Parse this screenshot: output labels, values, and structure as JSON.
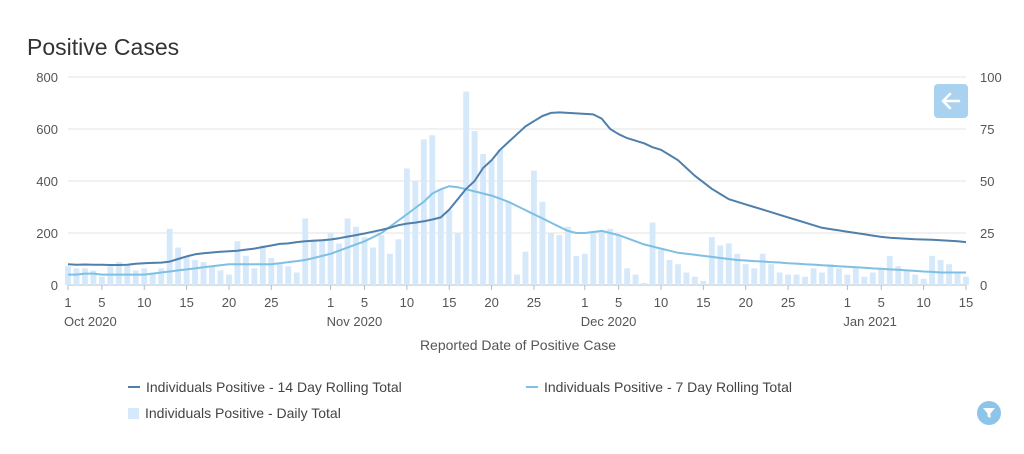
{
  "colors": {
    "rolling14": "#4f7fab",
    "rolling7": "#7ec0e4",
    "daily": "#d5e9fa",
    "grid": "#e3e3e3"
  },
  "icons": {
    "back": "left-arrow-icon",
    "filter": "filter-icon"
  },
  "chart_data": {
    "type": "bar+line",
    "title": "Positive Cases",
    "xlabel": "Reported Date of Positive Case",
    "x_start": "2020-10-01",
    "x_end": "2021-01-16",
    "ylim_left": [
      0,
      800
    ],
    "ylim_right": [
      0,
      100
    ],
    "left_ticks": [
      "0",
      "200",
      "400",
      "600",
      "800"
    ],
    "right_ticks": [
      "0",
      "25",
      "50",
      "75",
      "100"
    ],
    "x_ticks": [
      {
        "day": 0,
        "label": "1"
      },
      {
        "day": 4,
        "label": "5"
      },
      {
        "day": 9,
        "label": "10"
      },
      {
        "day": 14,
        "label": "15"
      },
      {
        "day": 19,
        "label": "20"
      },
      {
        "day": 24,
        "label": "25"
      },
      {
        "day": 31,
        "label": "1"
      },
      {
        "day": 35,
        "label": "5"
      },
      {
        "day": 40,
        "label": "10"
      },
      {
        "day": 45,
        "label": "15"
      },
      {
        "day": 50,
        "label": "20"
      },
      {
        "day": 55,
        "label": "25"
      },
      {
        "day": 61,
        "label": "1"
      },
      {
        "day": 65,
        "label": "5"
      },
      {
        "day": 70,
        "label": "10"
      },
      {
        "day": 75,
        "label": "15"
      },
      {
        "day": 80,
        "label": "20"
      },
      {
        "day": 85,
        "label": "25"
      },
      {
        "day": 92,
        "label": "1"
      },
      {
        "day": 96,
        "label": "5"
      },
      {
        "day": 101,
        "label": "10"
      },
      {
        "day": 106,
        "label": "15"
      }
    ],
    "month_labels": [
      {
        "day": 0,
        "label": "Oct 2020"
      },
      {
        "day": 31,
        "label": "Nov 2020"
      },
      {
        "day": 61,
        "label": "Dec 2020"
      },
      {
        "day": 92,
        "label": "Jan 2021"
      }
    ],
    "series": [
      {
        "name": "Individuals Positive - 14 Day Rolling Total",
        "type": "line",
        "axis": "left",
        "values": [
          80,
          78,
          79,
          78,
          78,
          77,
          77,
          78,
          82,
          84,
          85,
          86,
          90,
          100,
          110,
          118,
          122,
          125,
          128,
          130,
          132,
          136,
          140,
          146,
          152,
          158,
          160,
          165,
          168,
          170,
          172,
          175,
          180,
          186,
          192,
          198,
          205,
          212,
          220,
          230,
          236,
          240,
          245,
          252,
          260,
          290,
          330,
          370,
          400,
          450,
          480,
          520,
          550,
          580,
          610,
          630,
          650,
          662,
          664,
          662,
          660,
          658,
          656,
          640,
          600,
          580,
          565,
          555,
          545,
          530,
          520,
          500,
          480,
          450,
          420,
          395,
          370,
          350,
          330,
          320,
          310,
          300,
          290,
          280,
          270,
          260,
          250,
          240,
          230,
          220,
          215,
          210,
          205,
          200,
          195,
          190,
          185,
          182,
          180,
          178,
          176,
          175,
          174,
          172,
          170,
          168,
          165
        ]
      },
      {
        "name": "Individuals Positive - 7 Day Rolling Total",
        "type": "line",
        "axis": "right",
        "values": [
          5,
          5,
          5.5,
          5.5,
          5,
          5,
          5,
          5,
          5,
          5,
          5.5,
          6,
          6.5,
          7,
          7.5,
          8,
          8.5,
          9,
          9.5,
          10,
          10,
          10,
          10,
          10,
          10,
          10.5,
          11,
          11.5,
          12,
          13,
          14,
          15,
          16.5,
          18,
          19.5,
          21,
          23,
          25,
          28,
          31,
          34,
          37,
          40,
          44,
          46,
          47.5,
          47,
          46,
          45,
          44,
          43,
          41.5,
          40,
          38,
          36,
          34,
          32,
          30,
          28,
          26,
          25,
          25,
          25.5,
          26,
          25,
          24,
          22.5,
          21,
          19.5,
          18.5,
          17.5,
          16.5,
          15.5,
          15,
          14.5,
          14,
          13.5,
          13,
          12.5,
          12,
          11.8,
          11.5,
          11.3,
          11,
          10.8,
          10.5,
          10.3,
          10,
          9.8,
          9.5,
          9.3,
          9,
          8.8,
          8.5,
          8.3,
          8,
          7.8,
          7.5,
          7.3,
          7,
          6.8,
          6.5,
          6.3,
          6,
          6,
          6,
          6
        ]
      },
      {
        "name": "Individuals Positive - Daily Total",
        "type": "bar",
        "axis": "right",
        "values": [
          9,
          8,
          8,
          7,
          4,
          9,
          11,
          10,
          7,
          8,
          6,
          8,
          27,
          18,
          14,
          12,
          11,
          9,
          7,
          5,
          21,
          14,
          8,
          19,
          13,
          10,
          9,
          6,
          32,
          22,
          22,
          25,
          20,
          32,
          28,
          23,
          18,
          24,
          15,
          22,
          56,
          50,
          70,
          72,
          46,
          36,
          25,
          93,
          74,
          63,
          60,
          65,
          40,
          5,
          16,
          55,
          40,
          25,
          24,
          28,
          14,
          15,
          26,
          26,
          27,
          24,
          8,
          5,
          1,
          30,
          17,
          12,
          10,
          6,
          4,
          2,
          23,
          19,
          20,
          15,
          10,
          8,
          15,
          10,
          6,
          5,
          5,
          4,
          8,
          6,
          10,
          8,
          5,
          8,
          4,
          6,
          8,
          14,
          9,
          7,
          5,
          3,
          14,
          12,
          10,
          6,
          4
        ]
      }
    ]
  }
}
